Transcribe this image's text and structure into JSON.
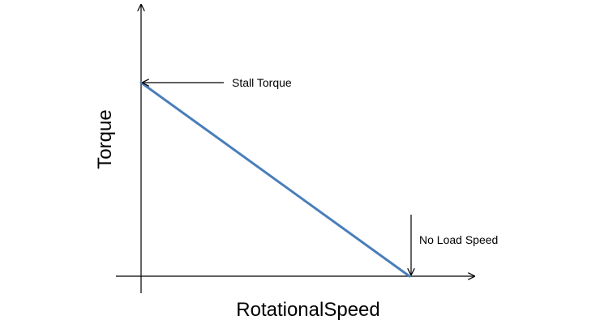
{
  "chart_data": {
    "type": "line",
    "title": "",
    "xlabel": "RotationalSpeed",
    "ylabel": "Torque",
    "xlim": [
      0,
      1
    ],
    "ylim": [
      0,
      1
    ],
    "grid": false,
    "legend": "none",
    "series": [
      {
        "color": "#4a7ebb",
        "x": [
          0,
          1
        ],
        "y": [
          1,
          0
        ]
      }
    ],
    "annotations": [
      {
        "text": "Stall Torque",
        "x": 0,
        "y": 1
      },
      {
        "text": "No Load Speed",
        "x": 1,
        "y": 0
      }
    ]
  }
}
